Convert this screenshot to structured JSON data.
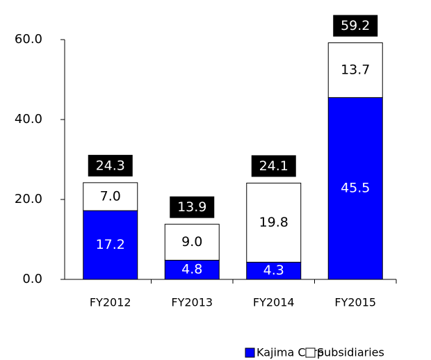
{
  "chart_data": {
    "type": "stacked_bar",
    "categories": [
      "FY2012",
      "FY2013",
      "FY2014",
      "FY2015"
    ],
    "series": [
      {
        "name": "Kajima Corp",
        "color": "#0000ff",
        "values": [
          17.2,
          4.8,
          4.3,
          45.5
        ],
        "value_labels": [
          "17.2",
          "4.8",
          "4.3",
          "45.5"
        ]
      },
      {
        "name": "Subsidiaries",
        "color": "#ffffff",
        "values": [
          7.0,
          9.0,
          19.8,
          13.7
        ],
        "value_labels": [
          "7.0",
          "9.0",
          "19.8",
          "13.7"
        ]
      }
    ],
    "totals": [
      24.3,
      13.9,
      24.1,
      59.2
    ],
    "ylim": [
      0,
      60
    ],
    "yticks": [
      {
        "value": 0,
        "label": "0.0"
      },
      {
        "value": 20,
        "label": "20.0"
      },
      {
        "value": 40,
        "label": "40.0"
      },
      {
        "value": 60,
        "label": "60.0"
      }
    ],
    "legend": "bottom"
  }
}
